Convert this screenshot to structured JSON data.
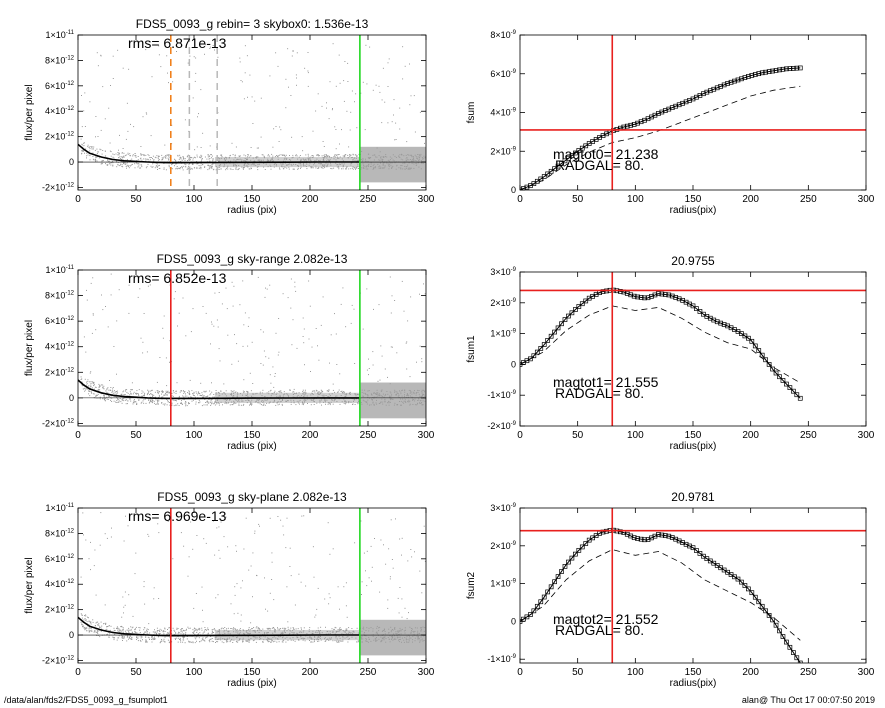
{
  "footer": {
    "path": "/data/alan/fds2/FDS5_0093_g_fsumplot1",
    "user_stamp": "alan@  Thu Oct 17 00:07:50 2019"
  },
  "colors": {
    "red": "#e8201e",
    "green": "#22d822",
    "orange": "#f07a10",
    "gray": "#9a9a9a",
    "dash": "#b8b8b8"
  },
  "chart_data": [
    {
      "id": "left1",
      "type": "scatter",
      "title": "FDS5_0093_g rebin= 3    skybox0:  1.536e-13",
      "annotation": "rms= 6.871e-13",
      "xlabel": "radius (pix)",
      "ylabel": "flux/per pixel",
      "xlim": [
        0,
        300
      ],
      "ylim": [
        -2.2e-12,
        1e-11
      ],
      "xticks": [
        "0",
        "50",
        "100",
        "150",
        "200",
        "250",
        "300"
      ],
      "yticks": [
        {
          "value": 1e-11,
          "mant": "1×10",
          "exp": "-11"
        },
        {
          "value": 8e-12,
          "mant": "8×10",
          "exp": "-12"
        },
        {
          "value": 6e-12,
          "mant": "6×10",
          "exp": "-12"
        },
        {
          "value": 4e-12,
          "mant": "4×10",
          "exp": "-12"
        },
        {
          "value": 2e-12,
          "mant": "2×10",
          "exp": "-12"
        },
        {
          "value": 0,
          "mant": "0",
          "exp": ""
        },
        {
          "value": -2e-12,
          "mant": "-2×10",
          "exp": "-12"
        }
      ],
      "vlines": [
        {
          "x": 80,
          "color": "#f07a10",
          "style": "dashed"
        },
        {
          "x": 96,
          "color": "#b8b8b8",
          "style": "dashed"
        },
        {
          "x": 120,
          "color": "#b8b8b8",
          "style": "dashed"
        },
        {
          "x": 243,
          "color": "#22d822",
          "style": "solid"
        }
      ],
      "profile": {
        "x": [
          0,
          5,
          10,
          20,
          30,
          40,
          50,
          60,
          70,
          80,
          100,
          120,
          150,
          180,
          210,
          243
        ],
        "y": [
          1.4e-12,
          1e-12,
          7e-13,
          4e-13,
          2e-13,
          1e-13,
          5e-14,
          0,
          -3e-14,
          -5e-14,
          -4e-14,
          -3e-14,
          -2e-14,
          -1e-14,
          0,
          0
        ]
      }
    },
    {
      "id": "right1",
      "type": "line",
      "title": "",
      "annotations": [
        "magtot0=  21.238",
        "RADGAL=     80."
      ],
      "xlabel": "radius(pix)",
      "ylabel": "fsum",
      "xlim": [
        0,
        300
      ],
      "ylim": [
        0,
        8e-09
      ],
      "xticks": [
        "0",
        "50",
        "100",
        "150",
        "200",
        "250",
        "300"
      ],
      "yticks": [
        {
          "value": 8e-09,
          "mant": "8×10",
          "exp": "-9"
        },
        {
          "value": 6e-09,
          "mant": "6×10",
          "exp": "-9"
        },
        {
          "value": 4e-09,
          "mant": "4×10",
          "exp": "-9"
        },
        {
          "value": 2e-09,
          "mant": "2×10",
          "exp": "-9"
        },
        {
          "value": 0,
          "mant": "0",
          "exp": ""
        }
      ],
      "vline": {
        "x": 80
      },
      "hline": {
        "y": 3.1e-09
      },
      "series": [
        {
          "style": "markers",
          "x": [
            0,
            10,
            20,
            30,
            40,
            50,
            60,
            70,
            80,
            90,
            100,
            110,
            120,
            130,
            140,
            150,
            160,
            170,
            180,
            190,
            200,
            210,
            220,
            230,
            243
          ],
          "y": [
            0,
            2.5e-10,
            6.5e-10,
            1.1e-09,
            1.55e-09,
            2e-09,
            2.4e-09,
            2.75e-09,
            3.05e-09,
            3.25e-09,
            3.4e-09,
            3.65e-09,
            3.95e-09,
            4.2e-09,
            4.45e-09,
            4.7e-09,
            5e-09,
            5.25e-09,
            5.5e-09,
            5.7e-09,
            5.9e-09,
            6.05e-09,
            6.15e-09,
            6.25e-09,
            6.3e-09
          ]
        },
        {
          "style": "dashed",
          "x": [
            0,
            20,
            40,
            60,
            80,
            100,
            120,
            140,
            160,
            180,
            200,
            220,
            243
          ],
          "y": [
            0,
            5e-10,
            1.3e-09,
            1.95e-09,
            2.45e-09,
            2.7e-09,
            3.05e-09,
            3.5e-09,
            3.95e-09,
            4.4e-09,
            4.85e-09,
            5.15e-09,
            5.35e-09
          ]
        }
      ]
    },
    {
      "id": "left2",
      "type": "scatter",
      "title": "FDS5_0093_g sky-range  2.082e-13",
      "annotation": "rms= 6.852e-13",
      "xlabel": "radius (pix)",
      "ylabel": "flux/per pixel",
      "xlim": [
        0,
        300
      ],
      "ylim": [
        -2.2e-12,
        1e-11
      ],
      "xticks": [
        "0",
        "50",
        "100",
        "150",
        "200",
        "250",
        "300"
      ],
      "yticks": [
        {
          "value": 1e-11,
          "mant": "1×10",
          "exp": "-11"
        },
        {
          "value": 8e-12,
          "mant": "8×10",
          "exp": "-12"
        },
        {
          "value": 6e-12,
          "mant": "6×10",
          "exp": "-12"
        },
        {
          "value": 4e-12,
          "mant": "4×10",
          "exp": "-12"
        },
        {
          "value": 2e-12,
          "mant": "2×10",
          "exp": "-12"
        },
        {
          "value": 0,
          "mant": "0",
          "exp": ""
        },
        {
          "value": -2e-12,
          "mant": "-2×10",
          "exp": "-12"
        }
      ],
      "vlines": [
        {
          "x": 80,
          "color": "#e8201e",
          "style": "solid"
        },
        {
          "x": 243,
          "color": "#22d822",
          "style": "solid"
        }
      ],
      "profile": {
        "x": [
          0,
          5,
          10,
          20,
          30,
          40,
          50,
          60,
          70,
          80,
          100,
          120,
          150,
          180,
          210,
          243
        ],
        "y": [
          1.4e-12,
          1e-12,
          7e-13,
          4e-13,
          2e-13,
          1e-13,
          5e-14,
          0,
          -3e-14,
          -5e-14,
          -4e-14,
          -3e-14,
          -2e-14,
          -1e-14,
          0,
          0
        ]
      }
    },
    {
      "id": "right2",
      "type": "line",
      "title": "20.9755",
      "annotations": [
        "magtot1=  21.555",
        "RADGAL=     80."
      ],
      "xlabel": "radius(pix)",
      "ylabel": "fsum1",
      "xlim": [
        0,
        300
      ],
      "ylim": [
        -2e-09,
        3e-09
      ],
      "xticks": [
        "0",
        "50",
        "100",
        "150",
        "200",
        "250",
        "300"
      ],
      "yticks": [
        {
          "value": 3e-09,
          "mant": "3×10",
          "exp": "-9"
        },
        {
          "value": 2e-09,
          "mant": "2×10",
          "exp": "-9"
        },
        {
          "value": 1e-09,
          "mant": "1×10",
          "exp": "-9"
        },
        {
          "value": 0,
          "mant": "0",
          "exp": ""
        },
        {
          "value": -1e-09,
          "mant": "-1×10",
          "exp": "-9"
        },
        {
          "value": -2e-09,
          "mant": "-2×10",
          "exp": "-9"
        }
      ],
      "vline": {
        "x": 80
      },
      "hline": {
        "y": 2.4e-09
      },
      "series": [
        {
          "style": "markers",
          "x": [
            0,
            10,
            20,
            30,
            40,
            50,
            60,
            70,
            80,
            90,
            100,
            110,
            120,
            130,
            140,
            150,
            160,
            170,
            180,
            190,
            200,
            210,
            220,
            230,
            243
          ],
          "y": [
            0,
            2e-10,
            6e-10,
            1.05e-09,
            1.5e-09,
            1.85e-09,
            2.15e-09,
            2.35e-09,
            2.42e-09,
            2.35e-09,
            2.2e-09,
            2.15e-09,
            2.3e-09,
            2.25e-09,
            2.1e-09,
            1.9e-09,
            1.6e-09,
            1.4e-09,
            1.25e-09,
            1.05e-09,
            8e-10,
            3e-10,
            -2e-10,
            -6e-10,
            -1.1e-09
          ]
        },
        {
          "style": "dashed",
          "x": [
            0,
            20,
            40,
            60,
            80,
            100,
            120,
            140,
            160,
            180,
            200,
            220,
            243
          ],
          "y": [
            0,
            4e-10,
            1.1e-09,
            1.6e-09,
            1.9e-09,
            1.75e-09,
            1.85e-09,
            1.5e-09,
            1.05e-09,
            7e-10,
            5e-10,
            -1e-10,
            -6e-10
          ]
        }
      ]
    },
    {
      "id": "left3",
      "type": "scatter",
      "title": "FDS5_0093_g sky-plane  2.082e-13",
      "annotation": "rms= 6.969e-13",
      "xlabel": "radius (pix)",
      "ylabel": "flux/per pixel",
      "xlim": [
        0,
        300
      ],
      "ylim": [
        -2.2e-12,
        1e-11
      ],
      "xticks": [
        "0",
        "50",
        "100",
        "150",
        "200",
        "250",
        "300"
      ],
      "yticks": [
        {
          "value": 1e-11,
          "mant": "1×10",
          "exp": "-11"
        },
        {
          "value": 8e-12,
          "mant": "8×10",
          "exp": "-12"
        },
        {
          "value": 6e-12,
          "mant": "6×10",
          "exp": "-12"
        },
        {
          "value": 4e-12,
          "mant": "4×10",
          "exp": "-12"
        },
        {
          "value": 2e-12,
          "mant": "2×10",
          "exp": "-12"
        },
        {
          "value": 0,
          "mant": "0",
          "exp": ""
        },
        {
          "value": -2e-12,
          "mant": "-2×10",
          "exp": "-12"
        }
      ],
      "vlines": [
        {
          "x": 80,
          "color": "#e8201e",
          "style": "solid"
        },
        {
          "x": 243,
          "color": "#22d822",
          "style": "solid"
        }
      ],
      "profile": {
        "x": [
          0,
          5,
          10,
          20,
          30,
          40,
          50,
          60,
          70,
          80,
          100,
          120,
          150,
          180,
          210,
          243
        ],
        "y": [
          1.4e-12,
          1e-12,
          7e-13,
          4e-13,
          2e-13,
          1e-13,
          5e-14,
          0,
          -3e-14,
          -5e-14,
          -4e-14,
          -3e-14,
          -2e-14,
          -1e-14,
          0,
          0
        ]
      }
    },
    {
      "id": "right3",
      "type": "line",
      "title": "20.9781",
      "annotations": [
        "magtot2=  21.552",
        "RADGAL=     80."
      ],
      "xlabel": "radius(pix)",
      "ylabel": "fsum2",
      "xlim": [
        0,
        300
      ],
      "ylim": [
        -1.1e-09,
        3e-09
      ],
      "xticks": [
        "0",
        "50",
        "100",
        "150",
        "200",
        "250",
        "300"
      ],
      "yticks": [
        {
          "value": 3e-09,
          "mant": "3×10",
          "exp": "-9"
        },
        {
          "value": 2e-09,
          "mant": "2×10",
          "exp": "-9"
        },
        {
          "value": 1e-09,
          "mant": "1×10",
          "exp": "-9"
        },
        {
          "value": 0,
          "mant": "0",
          "exp": ""
        },
        {
          "value": -1e-09,
          "mant": "-1×10",
          "exp": "-9"
        }
      ],
      "vline": {
        "x": 80
      },
      "hline": {
        "y": 2.4e-09
      },
      "series": [
        {
          "style": "markers",
          "x": [
            0,
            10,
            20,
            30,
            40,
            50,
            60,
            70,
            80,
            90,
            100,
            110,
            120,
            130,
            140,
            150,
            160,
            170,
            180,
            190,
            200,
            210,
            220,
            230,
            243
          ],
          "y": [
            0,
            2e-10,
            6e-10,
            1.05e-09,
            1.5e-09,
            1.85e-09,
            2.15e-09,
            2.35e-09,
            2.42e-09,
            2.35e-09,
            2.2e-09,
            2.15e-09,
            2.3e-09,
            2.25e-09,
            2.1e-09,
            1.95e-09,
            1.7e-09,
            1.5e-09,
            1.3e-09,
            1.1e-09,
            8e-10,
            4e-10,
            0,
            -5e-10,
            -1.1e-09
          ]
        },
        {
          "style": "dashed",
          "x": [
            0,
            20,
            40,
            60,
            80,
            100,
            120,
            140,
            160,
            180,
            200,
            220,
            243
          ],
          "y": [
            0,
            4e-10,
            1.1e-09,
            1.6e-09,
            1.9e-09,
            1.75e-09,
            1.85e-09,
            1.55e-09,
            1.1e-09,
            8e-10,
            5e-10,
            1e-10,
            -5e-10
          ]
        }
      ]
    }
  ]
}
